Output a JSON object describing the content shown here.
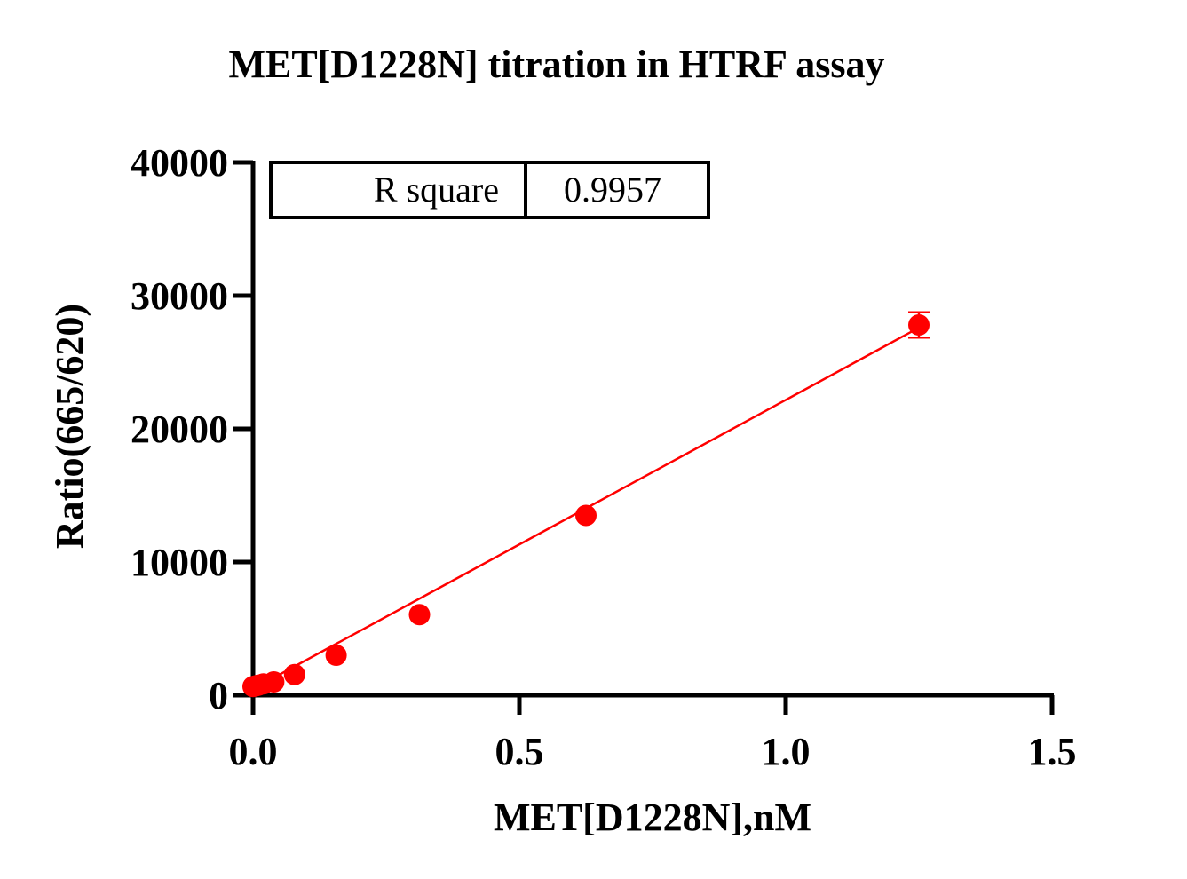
{
  "chart_data": {
    "type": "scatter",
    "title": "MET[D1228N] titration in HTRF assay",
    "xlabel": "MET[D1228N],nM",
    "ylabel": "Ratio(665/620)",
    "xlim": [
      0,
      1.5
    ],
    "ylim": [
      0,
      40000
    ],
    "xticks": [
      "0.0",
      "0.5",
      "1.0",
      "1.5"
    ],
    "xtick_values": [
      0,
      0.5,
      1.0,
      1.5
    ],
    "yticks": [
      "0",
      "10000",
      "20000",
      "30000",
      "40000"
    ],
    "ytick_values": [
      0,
      10000,
      20000,
      30000,
      40000
    ],
    "grid": false,
    "color": "#ff0000",
    "points": [
      {
        "x": 0,
        "y": 650,
        "err": 0
      },
      {
        "x": 0.0049,
        "y": 700,
        "err": 0
      },
      {
        "x": 0.0098,
        "y": 750,
        "err": 0
      },
      {
        "x": 0.0195,
        "y": 850,
        "err": 0
      },
      {
        "x": 0.039,
        "y": 1000,
        "err": 0
      },
      {
        "x": 0.078,
        "y": 1550,
        "err": 0
      },
      {
        "x": 0.156,
        "y": 3000,
        "err": 0
      },
      {
        "x": 0.3125,
        "y": 6050,
        "err": 0
      },
      {
        "x": 0.625,
        "y": 13500,
        "err": 0
      },
      {
        "x": 1.25,
        "y": 27800,
        "err": 950
      }
    ],
    "fit": {
      "type": "linear",
      "slope": 21700,
      "intercept": 470,
      "x_range": [
        0,
        1.25
      ]
    },
    "legend_table": {
      "label": "R square",
      "value": "0.9957"
    }
  }
}
